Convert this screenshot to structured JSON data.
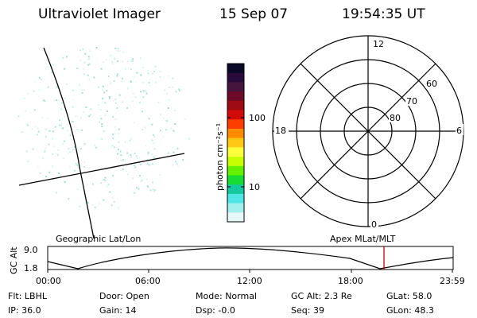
{
  "header": {
    "instrument": "Ultraviolet Imager",
    "date": "15 Sep 07",
    "time": "19:54:35 UT"
  },
  "colorbar": {
    "axis_label": "photon cm⁻²s⁻¹",
    "ticks": [
      "100",
      "10"
    ],
    "colors": [
      "#0a0a28",
      "#280a3c",
      "#46143c",
      "#6e0a28",
      "#a00a14",
      "#d20a0a",
      "#ff3c00",
      "#ff8c00",
      "#ffc814",
      "#ffff3c",
      "#c8ff00",
      "#64f000",
      "#14dc32",
      "#14c8a0",
      "#50e6e6",
      "#a0f0f0",
      "#e6f8f8"
    ]
  },
  "polar_plot": {
    "mlt_labels": {
      "top": "12",
      "left": "18",
      "right": "6",
      "bottom": "0"
    },
    "lat_labels": [
      "60",
      "70",
      "80"
    ]
  },
  "timeline": {
    "y_axis_label": "GC Alt",
    "y_ticks": [
      "9.0",
      "1.8"
    ],
    "left_label": "Geographic Lat/Lon",
    "right_label": "Apex  MLat/MLT",
    "x_ticks": [
      "00:00",
      "06:00",
      "12:00",
      "18:00",
      "23:59"
    ]
  },
  "status": {
    "row1": [
      {
        "label": "Flt:",
        "value": "LBHL"
      },
      {
        "label": "Door:",
        "value": "Open"
      },
      {
        "label": "Mode:",
        "value": "Normal"
      },
      {
        "label": "GC Alt:",
        "value": "2.3 Re"
      },
      {
        "label": "GLat:",
        "value": "58.0"
      }
    ],
    "row2": [
      {
        "label": "IP:",
        "value": "36.0"
      },
      {
        "label": "Gain:",
        "value": "14"
      },
      {
        "label": "Dsp:",
        "value": "-0.0"
      },
      {
        "label": "Seq:",
        "value": "39"
      },
      {
        "label": "GLon:",
        "value": "48.3"
      }
    ]
  }
}
